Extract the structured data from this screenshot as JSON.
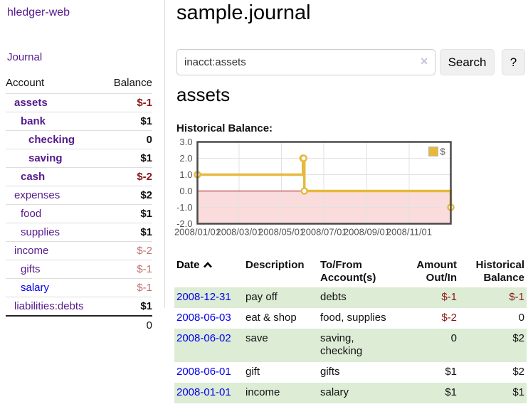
{
  "colors": {
    "link_visited_purple": "#551a8b",
    "link_unvisited_blue": "#0000ee",
    "negative_strong": "#8b1717",
    "negative_soft": "#bf7272",
    "row_shade_green": "#ddecd5",
    "series_gold": "#e6b93d",
    "negative_region_pink": "#fadcdc",
    "zero_line_red": "#a40000",
    "button_gray": "#f0f0f0"
  },
  "sidebar": {
    "app_title": "hledger-web",
    "nav": {
      "journal": "Journal"
    },
    "accounts_table": {
      "headers": {
        "account": "Account",
        "balance": "Balance"
      },
      "rows": [
        {
          "name": "assets",
          "depth": 1,
          "balance": "$-1",
          "emph": true,
          "neg": "strong",
          "link": "visited"
        },
        {
          "name": "bank",
          "depth": 2,
          "balance": "$1",
          "emph": true,
          "neg": null,
          "link": "visited"
        },
        {
          "name": "checking",
          "depth": 3,
          "balance": "0",
          "emph": true,
          "neg": null,
          "link": "visited"
        },
        {
          "name": "saving",
          "depth": 3,
          "balance": "$1",
          "emph": true,
          "neg": null,
          "link": "visited"
        },
        {
          "name": "cash",
          "depth": 2,
          "balance": "$-2",
          "emph": true,
          "neg": "strong",
          "link": "visited"
        },
        {
          "name": "expenses",
          "depth": 1,
          "balance": "$2",
          "emph": false,
          "neg": null,
          "link": "visited"
        },
        {
          "name": "food",
          "depth": 2,
          "balance": "$1",
          "emph": false,
          "neg": null,
          "link": "visited"
        },
        {
          "name": "supplies",
          "depth": 2,
          "balance": "$1",
          "emph": false,
          "neg": null,
          "link": "visited"
        },
        {
          "name": "income",
          "depth": 1,
          "balance": "$-2",
          "emph": false,
          "neg": "soft",
          "link": "visited"
        },
        {
          "name": "gifts",
          "depth": 2,
          "balance": "$-1",
          "emph": false,
          "neg": "soft",
          "link": "visited"
        },
        {
          "name": "salary",
          "depth": 2,
          "balance": "$-1",
          "emph": false,
          "neg": "soft",
          "link": "unvisited"
        },
        {
          "name": "liabilities:debts",
          "depth": 1,
          "balance": "$1",
          "emph": false,
          "neg": null,
          "link": "visited"
        }
      ],
      "total": "0"
    }
  },
  "main": {
    "title": "sample.journal",
    "search": {
      "value": "inacct:assets",
      "clear_icon": "✕",
      "button": "Search",
      "help_button": "?"
    },
    "account_heading": "assets",
    "register": {
      "headers": {
        "date": "Date",
        "description": "Description",
        "tofrom": "To/From Account(s)",
        "amount": "Amount Out/In",
        "historical": "Historical Balance"
      },
      "sort": "date-ascending",
      "rows": [
        {
          "date": "2008-12-31",
          "description": "pay off",
          "tofrom": "debts",
          "amount": "$-1",
          "historical": "$-1",
          "amount_neg": true,
          "historical_neg": true
        },
        {
          "date": "2008-06-03",
          "description": "eat & shop",
          "tofrom": "food, supplies",
          "amount": "$-2",
          "historical": "0",
          "amount_neg": true,
          "historical_neg": false
        },
        {
          "date": "2008-06-02",
          "description": "save",
          "tofrom": "saving,\nchecking",
          "amount": "0",
          "historical": "$2",
          "amount_neg": false,
          "historical_neg": false
        },
        {
          "date": "2008-06-01",
          "description": "gift",
          "tofrom": "gifts",
          "amount": "$1",
          "historical": "$2",
          "amount_neg": false,
          "historical_neg": false
        },
        {
          "date": "2008-01-01",
          "description": "income",
          "tofrom": "salary",
          "amount": "$1",
          "historical": "$1",
          "amount_neg": false,
          "historical_neg": false
        }
      ]
    }
  },
  "chart_data": {
    "type": "line",
    "title": "Historical Balance:",
    "series": [
      {
        "name": "$",
        "color": "#e6b93d",
        "points": [
          [
            "2008-01-01",
            1
          ],
          [
            "2008-06-01",
            2
          ],
          [
            "2008-06-02",
            2
          ],
          [
            "2008-06-03",
            0
          ],
          [
            "2008-12-31",
            -1
          ]
        ]
      }
    ],
    "line_style": "step",
    "xlim": [
      "2008-01-01",
      "2008-12-31"
    ],
    "ylim": [
      -2,
      3
    ],
    "xticks": [
      {
        "label": "2008/01/01",
        "date": "2008-01-01"
      },
      {
        "label": "2008/03/01",
        "date": "2008-03-01"
      },
      {
        "label": "2008/05/01",
        "date": "2008-05-01"
      },
      {
        "label": "2008/07/01",
        "date": "2008-07-01"
      },
      {
        "label": "2008/09/01",
        "date": "2008-09-01"
      },
      {
        "label": "2008/11/01",
        "date": "2008-11-01"
      }
    ],
    "yticks": [
      3,
      2,
      1,
      0,
      -1,
      -2
    ],
    "grid": true,
    "legend_position": "top-right",
    "negative_region_color": "#fadcdc",
    "zero_line_color": "#a40000"
  }
}
